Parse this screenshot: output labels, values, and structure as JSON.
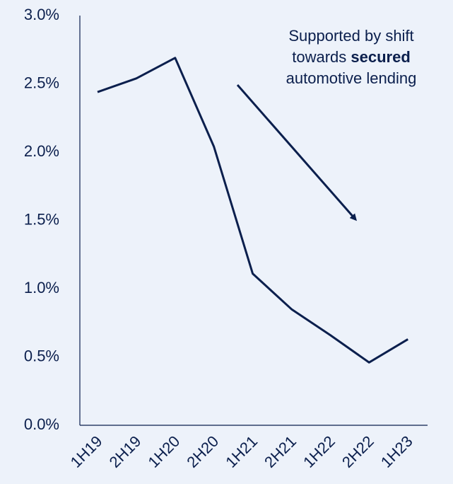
{
  "chart_data": {
    "type": "line",
    "categories": [
      "1H19",
      "2H19",
      "1H20",
      "2H20",
      "1H21",
      "2H21",
      "1H22",
      "2H22",
      "1H23"
    ],
    "series": [
      {
        "color": "#0b1f4d",
        "values": [
          2.44,
          2.54,
          2.69,
          2.04,
          1.11,
          0.85,
          0.66,
          0.46,
          0.63
        ]
      }
    ],
    "ylim": [
      0,
      3
    ],
    "yticks": [
      {
        "value": 0,
        "label": "0.0%"
      },
      {
        "value": 0.5,
        "label": "0.5%"
      },
      {
        "value": 1,
        "label": "1.0%"
      },
      {
        "value": 1.5,
        "label": "1.5%"
      },
      {
        "value": 2,
        "label": "2.0%"
      },
      {
        "value": 2.5,
        "label": "2.5%"
      },
      {
        "value": 3,
        "label": "3.0%"
      }
    ],
    "grid": false,
    "annotation": {
      "line1": "Supported by shift",
      "line2": "towards",
      "line2_bold": "secured",
      "line3": "automotive lending"
    }
  }
}
